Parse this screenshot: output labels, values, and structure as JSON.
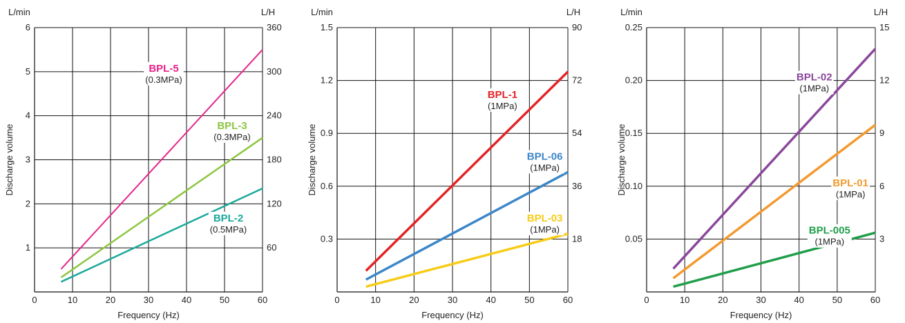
{
  "chart_data": [
    {
      "type": "line",
      "xlabel": "Frequency (Hz)",
      "ylabel": "Discharge volume",
      "left_unit": "L/min",
      "right_unit": "L/H",
      "xlim": [
        0,
        60
      ],
      "ylim": [
        0,
        6
      ],
      "x_ticks": [
        "0",
        "10",
        "20",
        "30",
        "40",
        "50",
        "60"
      ],
      "y_ticks_left": [
        {
          "v": 1,
          "label": "1"
        },
        {
          "v": 2,
          "label": "2"
        },
        {
          "v": 3,
          "label": "3"
        },
        {
          "v": 4,
          "label": "4"
        },
        {
          "v": 5,
          "label": "5"
        },
        {
          "v": 6,
          "label": "6"
        }
      ],
      "y_ticks_right": [
        {
          "v": 1,
          "label": "60"
        },
        {
          "v": 2,
          "label": "120"
        },
        {
          "v": 3,
          "label": "180"
        },
        {
          "v": 4,
          "label": "240"
        },
        {
          "v": 5,
          "label": "300"
        },
        {
          "v": 6,
          "label": "360"
        }
      ],
      "grid": true,
      "series": [
        {
          "name": "BPL-5",
          "note": "(0.3MPa)",
          "color": "#e5238a",
          "width": 2,
          "x": [
            7,
            60
          ],
          "y": [
            0.52,
            5.5
          ],
          "label_at": [
            34,
            5.0
          ]
        },
        {
          "name": "BPL-3",
          "note": "(0.3MPa)",
          "color": "#8cc63f",
          "width": 2.5,
          "x": [
            7,
            60
          ],
          "y": [
            0.33,
            3.5
          ],
          "label_at": [
            52,
            3.7
          ]
        },
        {
          "name": "BPL-2",
          "note": "(0.5MPa)",
          "color": "#1aa89a",
          "width": 2.5,
          "x": [
            7,
            60
          ],
          "y": [
            0.23,
            2.35
          ],
          "label_at": [
            51,
            1.6
          ]
        }
      ]
    },
    {
      "type": "line",
      "xlabel": "Frequency (Hz)",
      "ylabel": "Discharge volume",
      "left_unit": "L/min",
      "right_unit": "L/H",
      "xlim": [
        0,
        60
      ],
      "ylim": [
        0,
        1.5
      ],
      "x_ticks": [
        "0",
        "10",
        "20",
        "30",
        "40",
        "50",
        "60"
      ],
      "y_ticks_left": [
        {
          "v": 0.3,
          "label": "0.3"
        },
        {
          "v": 0.6,
          "label": "0.6"
        },
        {
          "v": 0.9,
          "label": "0.9"
        },
        {
          "v": 1.2,
          "label": "1.2"
        },
        {
          "v": 1.5,
          "label": "1.5"
        }
      ],
      "y_ticks_right": [
        {
          "v": 0.3,
          "label": "18"
        },
        {
          "v": 0.6,
          "label": "36"
        },
        {
          "v": 0.9,
          "label": "54"
        },
        {
          "v": 1.2,
          "label": "72"
        },
        {
          "v": 1.5,
          "label": "90"
        }
      ],
      "grid": true,
      "series": [
        {
          "name": "BPL-1",
          "note": "(1MPa)",
          "color": "#e32326",
          "width": 3.5,
          "x": [
            7.5,
            60
          ],
          "y": [
            0.12,
            1.25
          ],
          "label_at": [
            43,
            1.1
          ]
        },
        {
          "name": "BPL-06",
          "note": "(1MPa)",
          "color": "#3b86c8",
          "width": 3.5,
          "x": [
            7.5,
            60
          ],
          "y": [
            0.07,
            0.68
          ],
          "label_at": [
            54,
            0.75
          ]
        },
        {
          "name": "BPL-03",
          "note": "(1MPa)",
          "color": "#f7cc18",
          "width": 3.5,
          "x": [
            7.5,
            60
          ],
          "y": [
            0.03,
            0.33
          ],
          "label_at": [
            54,
            0.4
          ]
        }
      ]
    },
    {
      "type": "line",
      "xlabel": "Frequency (Hz)",
      "ylabel": "Discharge volume",
      "left_unit": "L/min",
      "right_unit": "L/H",
      "xlim": [
        0,
        60
      ],
      "ylim": [
        0,
        0.25
      ],
      "x_ticks": [
        "0",
        "10",
        "20",
        "30",
        "40",
        "50",
        "60"
      ],
      "y_ticks_left": [
        {
          "v": 0.05,
          "label": "0.05"
        },
        {
          "v": 0.1,
          "label": "0.10"
        },
        {
          "v": 0.15,
          "label": "0.15"
        },
        {
          "v": 0.2,
          "label": "0.20"
        },
        {
          "v": 0.25,
          "label": "0.25"
        }
      ],
      "y_ticks_right": [
        {
          "v": 0.05,
          "label": "3"
        },
        {
          "v": 0.1,
          "label": "6"
        },
        {
          "v": 0.15,
          "label": "9"
        },
        {
          "v": 0.2,
          "label": "12"
        },
        {
          "v": 0.25,
          "label": "15"
        }
      ],
      "grid": true,
      "series": [
        {
          "name": "BPL-02",
          "note": "(1MPa)",
          "color": "#8a479b",
          "width": 3.5,
          "x": [
            7,
            60
          ],
          "y": [
            0.022,
            0.23
          ],
          "label_at": [
            44,
            0.2
          ]
        },
        {
          "name": "BPL-01",
          "note": "(1MPa)",
          "color": "#f39a2f",
          "width": 3.5,
          "x": [
            7,
            60
          ],
          "y": [
            0.013,
            0.158
          ],
          "label_at": [
            53.5,
            0.1
          ]
        },
        {
          "name": "BPL-005",
          "note": "(1MPa)",
          "color": "#1f9e4a",
          "width": 3.5,
          "x": [
            7,
            60
          ],
          "y": [
            0.005,
            0.056
          ],
          "label_at": [
            48,
            0.055
          ]
        }
      ]
    }
  ]
}
